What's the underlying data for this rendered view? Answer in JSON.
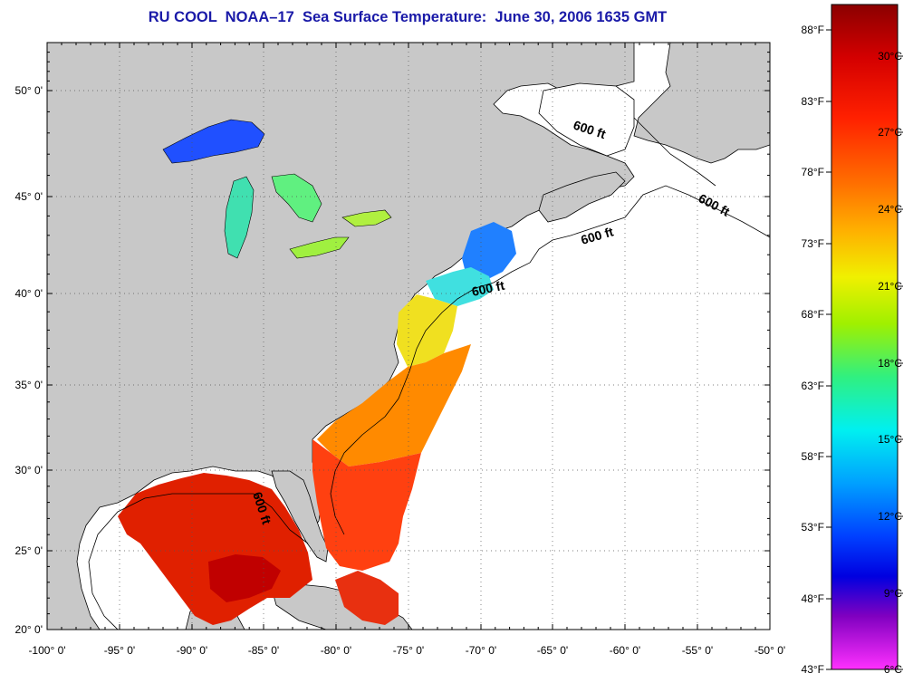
{
  "title": "RU COOL  NOAA–17  Sea Surface Temperature:  June 30, 2006 1635 GMT",
  "map": {
    "lon_labels": [
      "-100° 0'",
      "-95° 0'",
      "-90° 0'",
      "-85° 0'",
      "-80° 0'",
      "-75° 0'",
      "-70° 0'",
      "-65° 0'",
      "-60° 0'",
      "-55° 0'",
      "-50° 0'"
    ],
    "lat_labels": [
      "50° 0'",
      "45° 0'",
      "40° 0'",
      "35° 0'",
      "30° 0'",
      "25° 0'",
      "20° 0'"
    ],
    "contour_labels": [
      "600 ft",
      "600 ft",
      "600 ft",
      "600 ft",
      "600 ft"
    ],
    "colors": {
      "land": "#c8c8c8",
      "ocean_no_data": "#ffffff"
    }
  },
  "colorbar": {
    "fahrenheit_labels": [
      "88°F",
      "83°F",
      "78°F",
      "73°F",
      "68°F",
      "63°F",
      "58°F",
      "53°F",
      "48°F",
      "43°F"
    ],
    "celsius_labels": [
      "30°C",
      "27°C",
      "24°C",
      "21°C",
      "18°C",
      "15°C",
      "12°C",
      "9°C",
      "6°C"
    ],
    "gradient_colors": [
      "#8b0000",
      "#d40000",
      "#ff2000",
      "#ff7000",
      "#ffb000",
      "#f0f000",
      "#a0f000",
      "#30f080",
      "#00f0f0",
      "#00a0ff",
      "#0040ff",
      "#0000e0",
      "#8000c0",
      "#ff30ff"
    ]
  }
}
